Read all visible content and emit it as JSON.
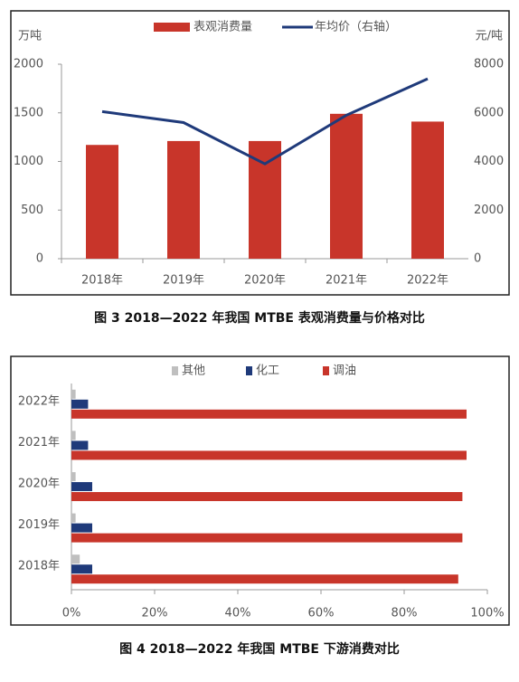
{
  "chart_data": [
    {
      "type": "bar_line",
      "caption": "图 3 2018—2022 年我国 MTBE 表观消费量与价格对比",
      "y_label": "万吨",
      "y2_label": "元/吨",
      "categories": [
        "2018年",
        "2019年",
        "2020年",
        "2021年",
        "2022年"
      ],
      "series": [
        {
          "name": "表观消费量",
          "color": "#c8352a",
          "values": [
            1170,
            1210,
            1210,
            1490,
            1410
          ]
        },
        {
          "name": "年均价（右轴）",
          "color": "#1f3a7a",
          "axis": "y2",
          "values": [
            6050,
            5600,
            3900,
            5900,
            7400
          ]
        }
      ],
      "ylim": [
        0,
        2000
      ],
      "yticks": [
        0,
        500,
        1000,
        1500,
        2000
      ],
      "y2lim": [
        0,
        8000
      ],
      "y2ticks": [
        0,
        2000,
        4000,
        6000,
        8000
      ]
    },
    {
      "type": "hbar",
      "caption": "图 4 2018—2022 年我国 MTBE 下游消费对比",
      "categories": [
        "2018年",
        "2019年",
        "2020年",
        "2021年",
        "2022年"
      ],
      "series": [
        {
          "name": "其他",
          "color": "#bfbfbf",
          "values": [
            2,
            1,
            1,
            1,
            1
          ]
        },
        {
          "name": "化工",
          "color": "#1f3a7a",
          "values": [
            5,
            5,
            5,
            4,
            4
          ]
        },
        {
          "name": "调油",
          "color": "#c8352a",
          "values": [
            93,
            94,
            94,
            95,
            95
          ]
        }
      ],
      "xlim": [
        0,
        100
      ],
      "xticks": [
        {
          "value": 0,
          "label": "0%"
        },
        {
          "value": 20,
          "label": "20%"
        },
        {
          "value": 40,
          "label": "40%"
        },
        {
          "value": 60,
          "label": "60%"
        },
        {
          "value": 80,
          "label": "80%"
        },
        {
          "value": 100,
          "label": "100%"
        }
      ]
    }
  ]
}
